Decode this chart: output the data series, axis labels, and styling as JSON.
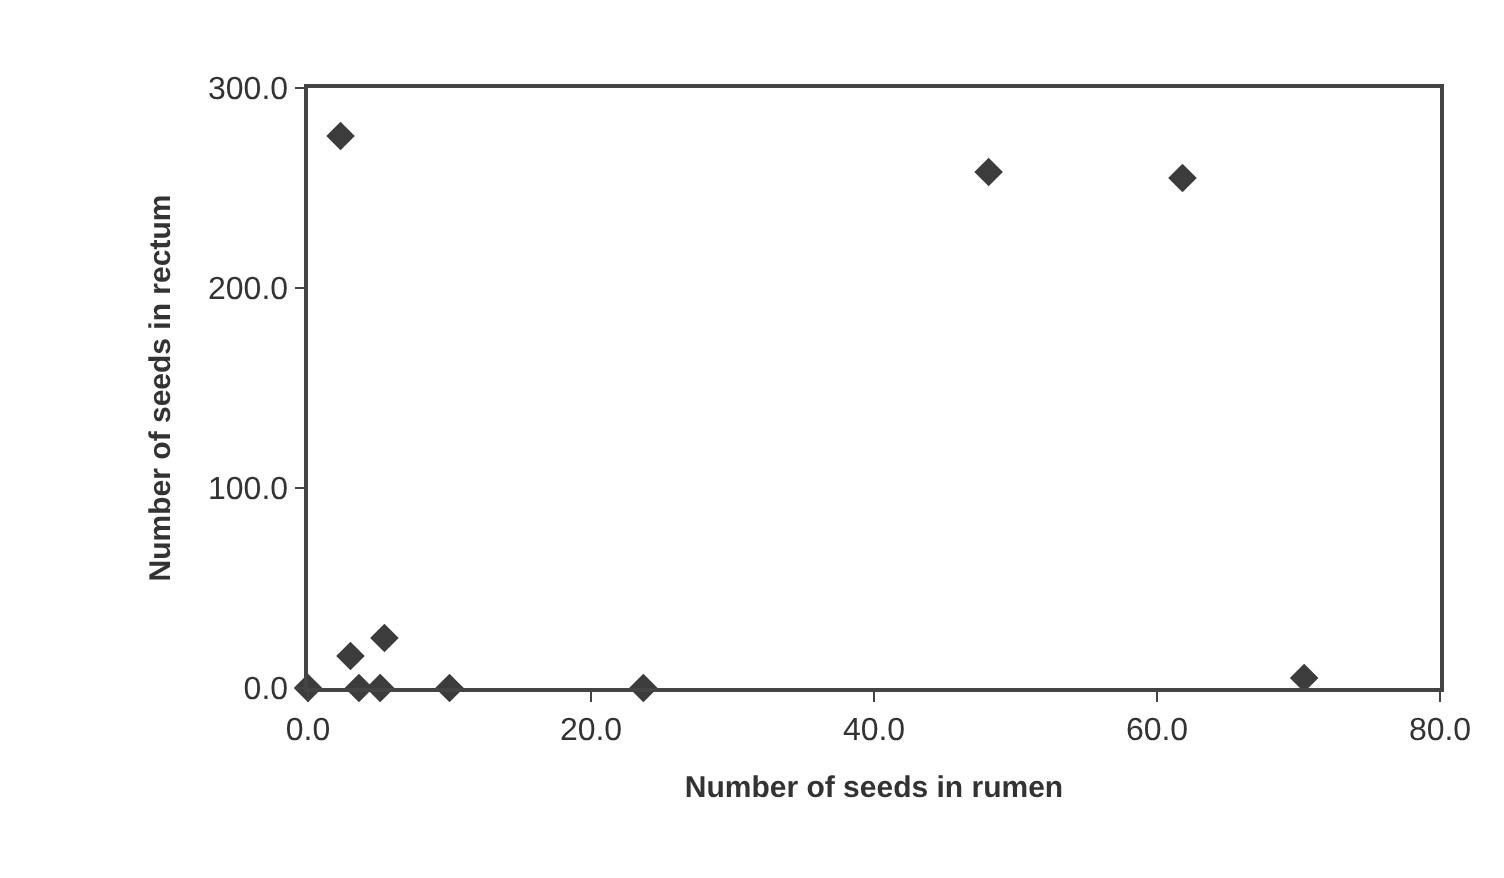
{
  "chart_data": {
    "type": "scatter",
    "xlabel": "Number of seeds in rumen",
    "ylabel": "Number of seeds in rectum",
    "x": [
      0,
      2.3,
      3.0,
      3.6,
      5.1,
      5.4,
      10.0,
      23.7,
      48.1,
      61.8,
      70.4
    ],
    "values": [
      0,
      276,
      16,
      0,
      0,
      25,
      0,
      0,
      258,
      255,
      5
    ],
    "color": "#3c3c3c",
    "marker": "diamond",
    "xlim": [
      0,
      80
    ],
    "xticks": [
      {
        "value": 0,
        "label": "0.0"
      },
      {
        "value": 20,
        "label": "20.0"
      },
      {
        "value": 40,
        "label": "40.0"
      },
      {
        "value": 60,
        "label": "60.0"
      },
      {
        "value": 80,
        "label": "80.0"
      }
    ],
    "ylim": [
      0,
      300
    ],
    "yticks": [
      {
        "value": 0,
        "label": "0.0"
      },
      {
        "value": 100,
        "label": "100.0"
      },
      {
        "value": 200,
        "label": "200.0"
      },
      {
        "value": 300,
        "label": "300.0"
      }
    ],
    "legend": false
  }
}
